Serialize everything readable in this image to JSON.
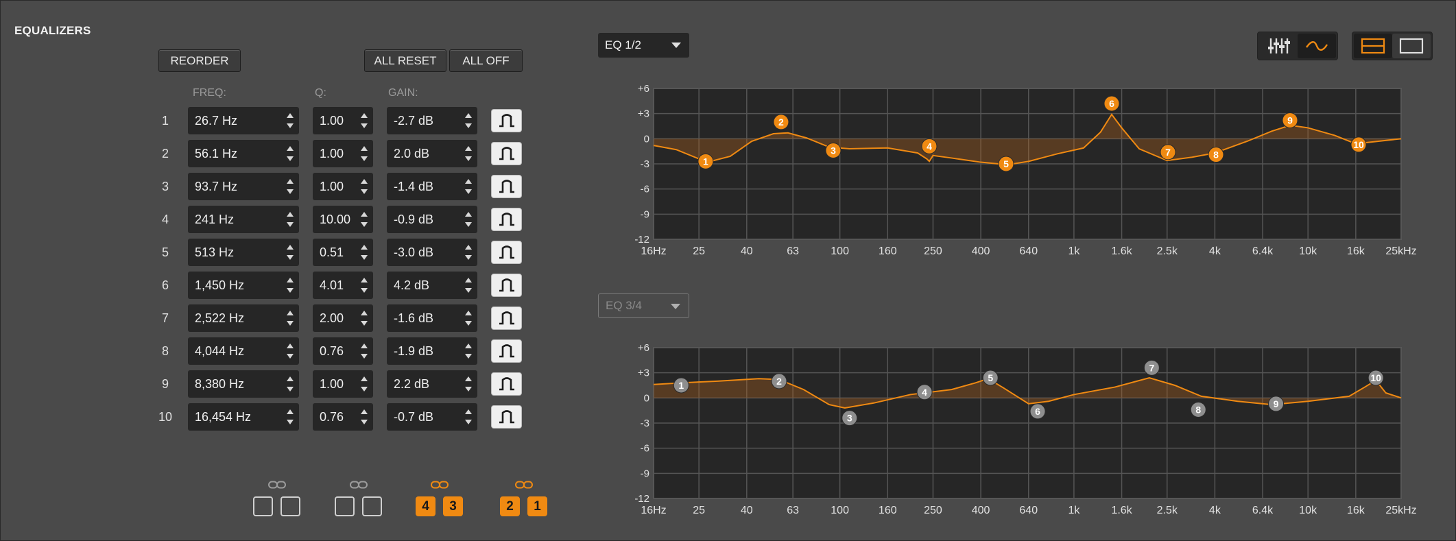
{
  "panel": {
    "title": "EQUALIZERS"
  },
  "buttons": {
    "reorder": "REORDER",
    "all_reset": "ALL RESET",
    "all_off": "ALL OFF"
  },
  "columns": {
    "freq": "FREQ:",
    "q": "Q:",
    "gain": "GAIN:"
  },
  "bands": [
    {
      "num": "1",
      "freq": "26.7 Hz",
      "q": "1.00",
      "gain": "-2.7 dB"
    },
    {
      "num": "2",
      "freq": "56.1 Hz",
      "q": "1.00",
      "gain": "2.0 dB"
    },
    {
      "num": "3",
      "freq": "93.7 Hz",
      "q": "1.00",
      "gain": "-1.4 dB"
    },
    {
      "num": "4",
      "freq": "241 Hz",
      "q": "10.00",
      "gain": "-0.9 dB"
    },
    {
      "num": "5",
      "freq": "513 Hz",
      "q": "0.51",
      "gain": "-3.0 dB"
    },
    {
      "num": "6",
      "freq": "1,450 Hz",
      "q": "4.01",
      "gain": "4.2 dB"
    },
    {
      "num": "7",
      "freq": "2,522 Hz",
      "q": "2.00",
      "gain": "-1.6 dB"
    },
    {
      "num": "8",
      "freq": "4,044 Hz",
      "q": "0.76",
      "gain": "-1.9 dB"
    },
    {
      "num": "9",
      "freq": "8,380 Hz",
      "q": "1.00",
      "gain": "2.2 dB"
    },
    {
      "num": "10",
      "freq": "16,454 Hz",
      "q": "0.76",
      "gain": "-0.7 dB"
    }
  ],
  "link_groups": [
    {
      "icon": "link-icon",
      "active": false,
      "labels": [
        "",
        ""
      ]
    },
    {
      "icon": "link-icon",
      "active": false,
      "labels": [
        "",
        ""
      ]
    },
    {
      "icon": "link-icon",
      "active": true,
      "labels": [
        "4",
        "3"
      ]
    },
    {
      "icon": "link-icon",
      "active": true,
      "labels": [
        "2",
        "1"
      ]
    }
  ],
  "eq_select_top": "EQ 1/2",
  "eq_select_bottom": "EQ 3/4",
  "view_toggles": {
    "mode": [
      {
        "icon": "sliders-icon",
        "selected": false
      },
      {
        "icon": "curve-icon",
        "selected": true
      }
    ],
    "layout": [
      {
        "icon": "split-view-icon",
        "selected": true
      },
      {
        "icon": "single-view-icon",
        "selected": false
      }
    ]
  },
  "colors": {
    "accent": "#f08a12",
    "grid_bg": "#262626",
    "marker_gray": "#8e8e8e"
  },
  "chart_data": [
    {
      "type": "line",
      "name": "EQ 1/2",
      "x_scale": "log",
      "xlim": [
        16,
        25000
      ],
      "ylim": [
        -12,
        6
      ],
      "x_ticks": [
        16,
        25,
        40,
        63,
        100,
        160,
        250,
        400,
        640,
        1000,
        1600,
        2500,
        4000,
        6400,
        10000,
        16000,
        25000
      ],
      "x_tick_labels": [
        "16Hz",
        "25",
        "40",
        "63",
        "100",
        "160",
        "250",
        "400",
        "640",
        "1k",
        "1.6k",
        "2.5k",
        "4k",
        "6.4k",
        "10k",
        "16k",
        "25kHz"
      ],
      "y_ticks": [
        6,
        3,
        0,
        -3,
        -6,
        -9,
        -12
      ],
      "y_tick_labels": [
        "+6",
        "+3",
        "0",
        "-3",
        "-6",
        "-9",
        "-12"
      ],
      "grid": true,
      "curve": [
        {
          "x": 16,
          "y": -0.8
        },
        {
          "x": 20,
          "y": -1.3
        },
        {
          "x": 25,
          "y": -2.4
        },
        {
          "x": 28,
          "y": -2.7
        },
        {
          "x": 34,
          "y": -2.1
        },
        {
          "x": 42,
          "y": -0.3
        },
        {
          "x": 52,
          "y": 0.6
        },
        {
          "x": 60,
          "y": 0.7
        },
        {
          "x": 72,
          "y": 0.1
        },
        {
          "x": 90,
          "y": -1.0
        },
        {
          "x": 110,
          "y": -1.2
        },
        {
          "x": 160,
          "y": -1.1
        },
        {
          "x": 215,
          "y": -1.7
        },
        {
          "x": 235,
          "y": -2.4
        },
        {
          "x": 241,
          "y": -2.7
        },
        {
          "x": 250,
          "y": -2.0
        },
        {
          "x": 300,
          "y": -2.3
        },
        {
          "x": 400,
          "y": -2.8
        },
        {
          "x": 520,
          "y": -3.1
        },
        {
          "x": 640,
          "y": -2.7
        },
        {
          "x": 850,
          "y": -1.8
        },
        {
          "x": 1100,
          "y": -1.1
        },
        {
          "x": 1300,
          "y": 0.8
        },
        {
          "x": 1450,
          "y": 2.9
        },
        {
          "x": 1600,
          "y": 1.3
        },
        {
          "x": 1900,
          "y": -1.2
        },
        {
          "x": 2500,
          "y": -2.6
        },
        {
          "x": 3200,
          "y": -2.2
        },
        {
          "x": 4000,
          "y": -1.7
        },
        {
          "x": 5500,
          "y": -0.3
        },
        {
          "x": 7000,
          "y": 0.9
        },
        {
          "x": 8400,
          "y": 1.6
        },
        {
          "x": 10000,
          "y": 1.3
        },
        {
          "x": 13000,
          "y": 0.4
        },
        {
          "x": 16000,
          "y": -0.6
        },
        {
          "x": 20000,
          "y": -0.3
        },
        {
          "x": 25000,
          "y": 0.0
        }
      ],
      "markers": [
        {
          "label": "1",
          "x": 26.7,
          "y": -2.7
        },
        {
          "label": "2",
          "x": 56.1,
          "y": 2.0
        },
        {
          "label": "3",
          "x": 93.7,
          "y": -1.4
        },
        {
          "label": "4",
          "x": 241,
          "y": -0.9
        },
        {
          "label": "5",
          "x": 513,
          "y": -3.0
        },
        {
          "label": "6",
          "x": 1450,
          "y": 4.2
        },
        {
          "label": "7",
          "x": 2522,
          "y": -1.6
        },
        {
          "label": "8",
          "x": 4044,
          "y": -1.9
        },
        {
          "label": "9",
          "x": 8380,
          "y": 2.2
        },
        {
          "label": "10",
          "x": 16454,
          "y": -0.7
        }
      ],
      "marker_color": "#f08a12"
    },
    {
      "type": "line",
      "name": "EQ 3/4",
      "x_scale": "log",
      "xlim": [
        16,
        25000
      ],
      "ylim": [
        -12,
        6
      ],
      "x_ticks": [
        16,
        25,
        40,
        63,
        100,
        160,
        250,
        400,
        640,
        1000,
        1600,
        2500,
        4000,
        6400,
        10000,
        16000,
        25000
      ],
      "x_tick_labels": [
        "16Hz",
        "25",
        "40",
        "63",
        "100",
        "160",
        "250",
        "400",
        "640",
        "1k",
        "1.6k",
        "2.5k",
        "4k",
        "6.4k",
        "10k",
        "16k",
        "25kHz"
      ],
      "y_ticks": [
        6,
        3,
        0,
        -3,
        -6,
        -9,
        -12
      ],
      "y_tick_labels": [
        "+6",
        "+3",
        "0",
        "-3",
        "-6",
        "-9",
        "-12"
      ],
      "grid": true,
      "curve": [
        {
          "x": 16,
          "y": 1.6
        },
        {
          "x": 21,
          "y": 1.8
        },
        {
          "x": 30,
          "y": 2.0
        },
        {
          "x": 45,
          "y": 2.3
        },
        {
          "x": 55,
          "y": 2.2
        },
        {
          "x": 70,
          "y": 1.0
        },
        {
          "x": 90,
          "y": -0.8
        },
        {
          "x": 105,
          "y": -1.2
        },
        {
          "x": 140,
          "y": -0.6
        },
        {
          "x": 200,
          "y": 0.4
        },
        {
          "x": 300,
          "y": 1.0
        },
        {
          "x": 380,
          "y": 1.8
        },
        {
          "x": 430,
          "y": 2.3
        },
        {
          "x": 500,
          "y": 1.2
        },
        {
          "x": 640,
          "y": -0.7
        },
        {
          "x": 780,
          "y": -0.4
        },
        {
          "x": 1000,
          "y": 0.4
        },
        {
          "x": 1500,
          "y": 1.3
        },
        {
          "x": 2100,
          "y": 2.4
        },
        {
          "x": 2700,
          "y": 1.5
        },
        {
          "x": 3500,
          "y": 0.2
        },
        {
          "x": 5000,
          "y": -0.4
        },
        {
          "x": 7000,
          "y": -0.8
        },
        {
          "x": 10000,
          "y": -0.4
        },
        {
          "x": 15000,
          "y": 0.2
        },
        {
          "x": 17500,
          "y": 1.3
        },
        {
          "x": 19500,
          "y": 2.1
        },
        {
          "x": 21500,
          "y": 0.6
        },
        {
          "x": 25000,
          "y": 0.0
        }
      ],
      "markers": [
        {
          "label": "1",
          "x": 21,
          "y": 1.5
        },
        {
          "label": "2",
          "x": 55,
          "y": 2.0
        },
        {
          "label": "3",
          "x": 110,
          "y": -2.4
        },
        {
          "label": "4",
          "x": 230,
          "y": 0.7
        },
        {
          "label": "5",
          "x": 440,
          "y": 2.4
        },
        {
          "label": "6",
          "x": 700,
          "y": -1.6
        },
        {
          "label": "7",
          "x": 2150,
          "y": 3.6
        },
        {
          "label": "8",
          "x": 3400,
          "y": -1.4
        },
        {
          "label": "9",
          "x": 7300,
          "y": -0.7
        },
        {
          "label": "10",
          "x": 19500,
          "y": 2.4
        }
      ],
      "marker_color": "#8e8e8e"
    }
  ]
}
